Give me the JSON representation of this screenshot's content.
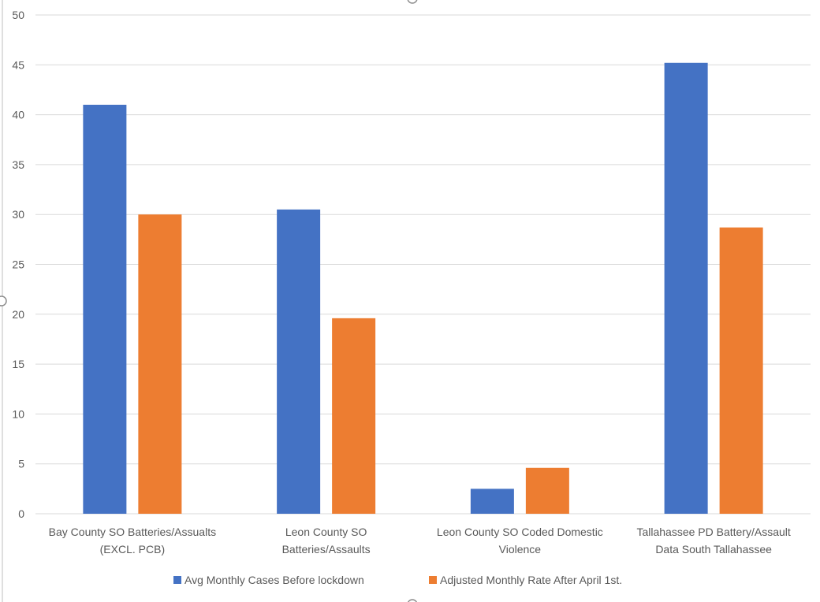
{
  "chart_data": {
    "type": "bar",
    "title": "",
    "xlabel": "",
    "ylabel": "",
    "ylim": [
      0,
      50
    ],
    "yticks": [
      0,
      5,
      10,
      15,
      20,
      25,
      30,
      35,
      40,
      45,
      50
    ],
    "grid": true,
    "legend_position": "bottom",
    "categories": [
      [
        "Bay County SO Batteries/Assualts",
        "(EXCL. PCB)"
      ],
      [
        "Leon County SO",
        "Batteries/Assaults"
      ],
      [
        "Leon County SO Coded Domestic",
        "Violence"
      ],
      [
        "Tallahassee PD Battery/Assault",
        "Data South Tallahassee"
      ]
    ],
    "series": [
      {
        "name": "Avg Monthly Cases Before lockdown",
        "color": "#4472c4",
        "values": [
          41,
          30.5,
          2.5,
          45.2
        ]
      },
      {
        "name": "Adjusted Monthly Rate After April 1st.",
        "color": "#ed7d31",
        "values": [
          30,
          19.6,
          4.6,
          28.7
        ]
      }
    ]
  }
}
